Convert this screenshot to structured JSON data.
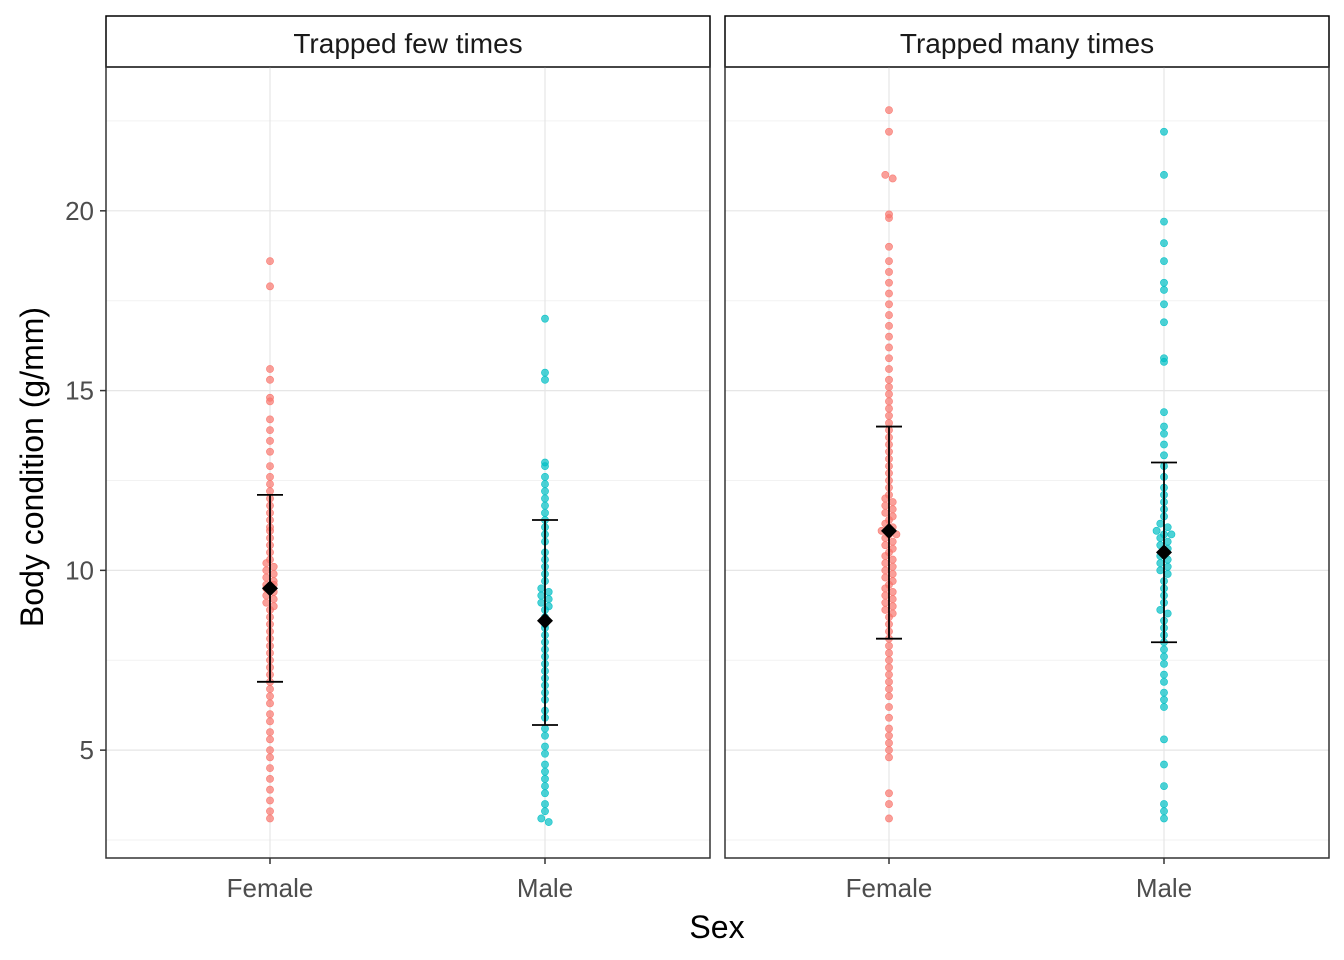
{
  "chart_data": {
    "type": "scatter",
    "subtype": "beeswarm with mean ± SD error bars, faceted",
    "xlabel": "Sex",
    "ylabel": "Body condition (g/mm)",
    "ylim": [
      2,
      24
    ],
    "yticks": [
      5,
      10,
      15,
      20
    ],
    "categories": [
      "Female",
      "Male"
    ],
    "colors": {
      "Female": "#F8766D",
      "Male": "#00BFC4",
      "summary": "#000000"
    },
    "grid": true,
    "legend": "none",
    "facets": [
      {
        "label": "Trapped few times",
        "groups": [
          {
            "sex": "Female",
            "mean": 9.5,
            "sd_low": 6.9,
            "sd_high": 12.1,
            "points": [
              18.6,
              17.9,
              15.6,
              15.3,
              14.8,
              14.7,
              14.2,
              13.9,
              13.6,
              13.3,
              12.9,
              12.6,
              12.4,
              12.2,
              12.0,
              11.8,
              11.6,
              11.4,
              11.2,
              11.1,
              10.9,
              10.7,
              10.5,
              10.3,
              10.2,
              10.1,
              10.0,
              9.9,
              9.8,
              9.7,
              9.6,
              9.6,
              9.5,
              9.4,
              9.3,
              9.2,
              9.1,
              9.0,
              8.9,
              8.7,
              8.5,
              8.3,
              8.1,
              7.9,
              7.7,
              7.5,
              7.3,
              7.1,
              6.9,
              6.7,
              6.5,
              6.3,
              6.0,
              5.8,
              5.5,
              5.3,
              5.0,
              4.8,
              4.5,
              4.2,
              3.9,
              3.6,
              3.3,
              3.1
            ]
          },
          {
            "sex": "Male",
            "mean": 8.6,
            "sd_low": 5.7,
            "sd_high": 11.4,
            "points": [
              17.0,
              15.5,
              15.3,
              13.0,
              12.9,
              12.6,
              12.4,
              12.2,
              12.0,
              11.8,
              11.6,
              11.4,
              11.2,
              11.0,
              10.8,
              10.5,
              10.3,
              10.1,
              9.9,
              9.7,
              9.5,
              9.4,
              9.3,
              9.2,
              9.1,
              9.0,
              8.9,
              8.7,
              8.5,
              8.4,
              8.2,
              8.0,
              7.8,
              7.6,
              7.4,
              7.2,
              7.0,
              6.8,
              6.6,
              6.4,
              6.1,
              5.9,
              5.6,
              5.4,
              5.1,
              4.9,
              4.6,
              4.4,
              4.2,
              4.0,
              3.8,
              3.5,
              3.3,
              3.1,
              3.0
            ]
          }
        ]
      },
      {
        "label": "Trapped many times",
        "groups": [
          {
            "sex": "Female",
            "mean": 11.1,
            "sd_low": 8.1,
            "sd_high": 14.0,
            "points": [
              22.8,
              22.2,
              21.0,
              20.9,
              19.9,
              19.8,
              19.0,
              18.6,
              18.3,
              18.0,
              17.7,
              17.4,
              17.1,
              16.8,
              16.5,
              16.2,
              15.9,
              15.6,
              15.3,
              15.1,
              14.9,
              14.7,
              14.5,
              14.3,
              14.1,
              13.9,
              13.7,
              13.5,
              13.3,
              13.1,
              12.9,
              12.7,
              12.5,
              12.3,
              12.1,
              12.0,
              11.9,
              11.8,
              11.7,
              11.6,
              11.5,
              11.4,
              11.3,
              11.2,
              11.1,
              11.0,
              11.0,
              10.9,
              10.8,
              10.7,
              10.6,
              10.5,
              10.4,
              10.3,
              10.2,
              10.1,
              10.0,
              9.9,
              9.8,
              9.7,
              9.6,
              9.5,
              9.4,
              9.3,
              9.2,
              9.1,
              9.0,
              8.9,
              8.8,
              8.7,
              8.5,
              8.3,
              8.1,
              7.9,
              7.7,
              7.5,
              7.3,
              7.1,
              6.9,
              6.7,
              6.5,
              6.2,
              5.9,
              5.6,
              5.4,
              5.2,
              5.0,
              4.8,
              3.8,
              3.5,
              3.1
            ]
          },
          {
            "sex": "Male",
            "mean": 10.5,
            "sd_low": 8.0,
            "sd_high": 13.0,
            "points": [
              22.2,
              21.0,
              19.7,
              19.1,
              18.6,
              18.0,
              17.8,
              17.4,
              16.9,
              15.9,
              15.8,
              14.4,
              14.0,
              13.8,
              13.5,
              13.2,
              12.9,
              12.6,
              12.3,
              12.1,
              11.9,
              11.7,
              11.5,
              11.3,
              11.2,
              11.1,
              11.0,
              11.0,
              10.9,
              10.8,
              10.7,
              10.6,
              10.5,
              10.4,
              10.3,
              10.2,
              10.1,
              10.0,
              9.9,
              9.7,
              9.5,
              9.3,
              9.1,
              8.9,
              8.8,
              8.6,
              8.4,
              8.2,
              8.0,
              7.8,
              7.6,
              7.4,
              7.1,
              6.9,
              6.6,
              6.4,
              6.2,
              5.3,
              4.6,
              4.0,
              3.5,
              3.3,
              3.1
            ]
          }
        ]
      }
    ]
  }
}
